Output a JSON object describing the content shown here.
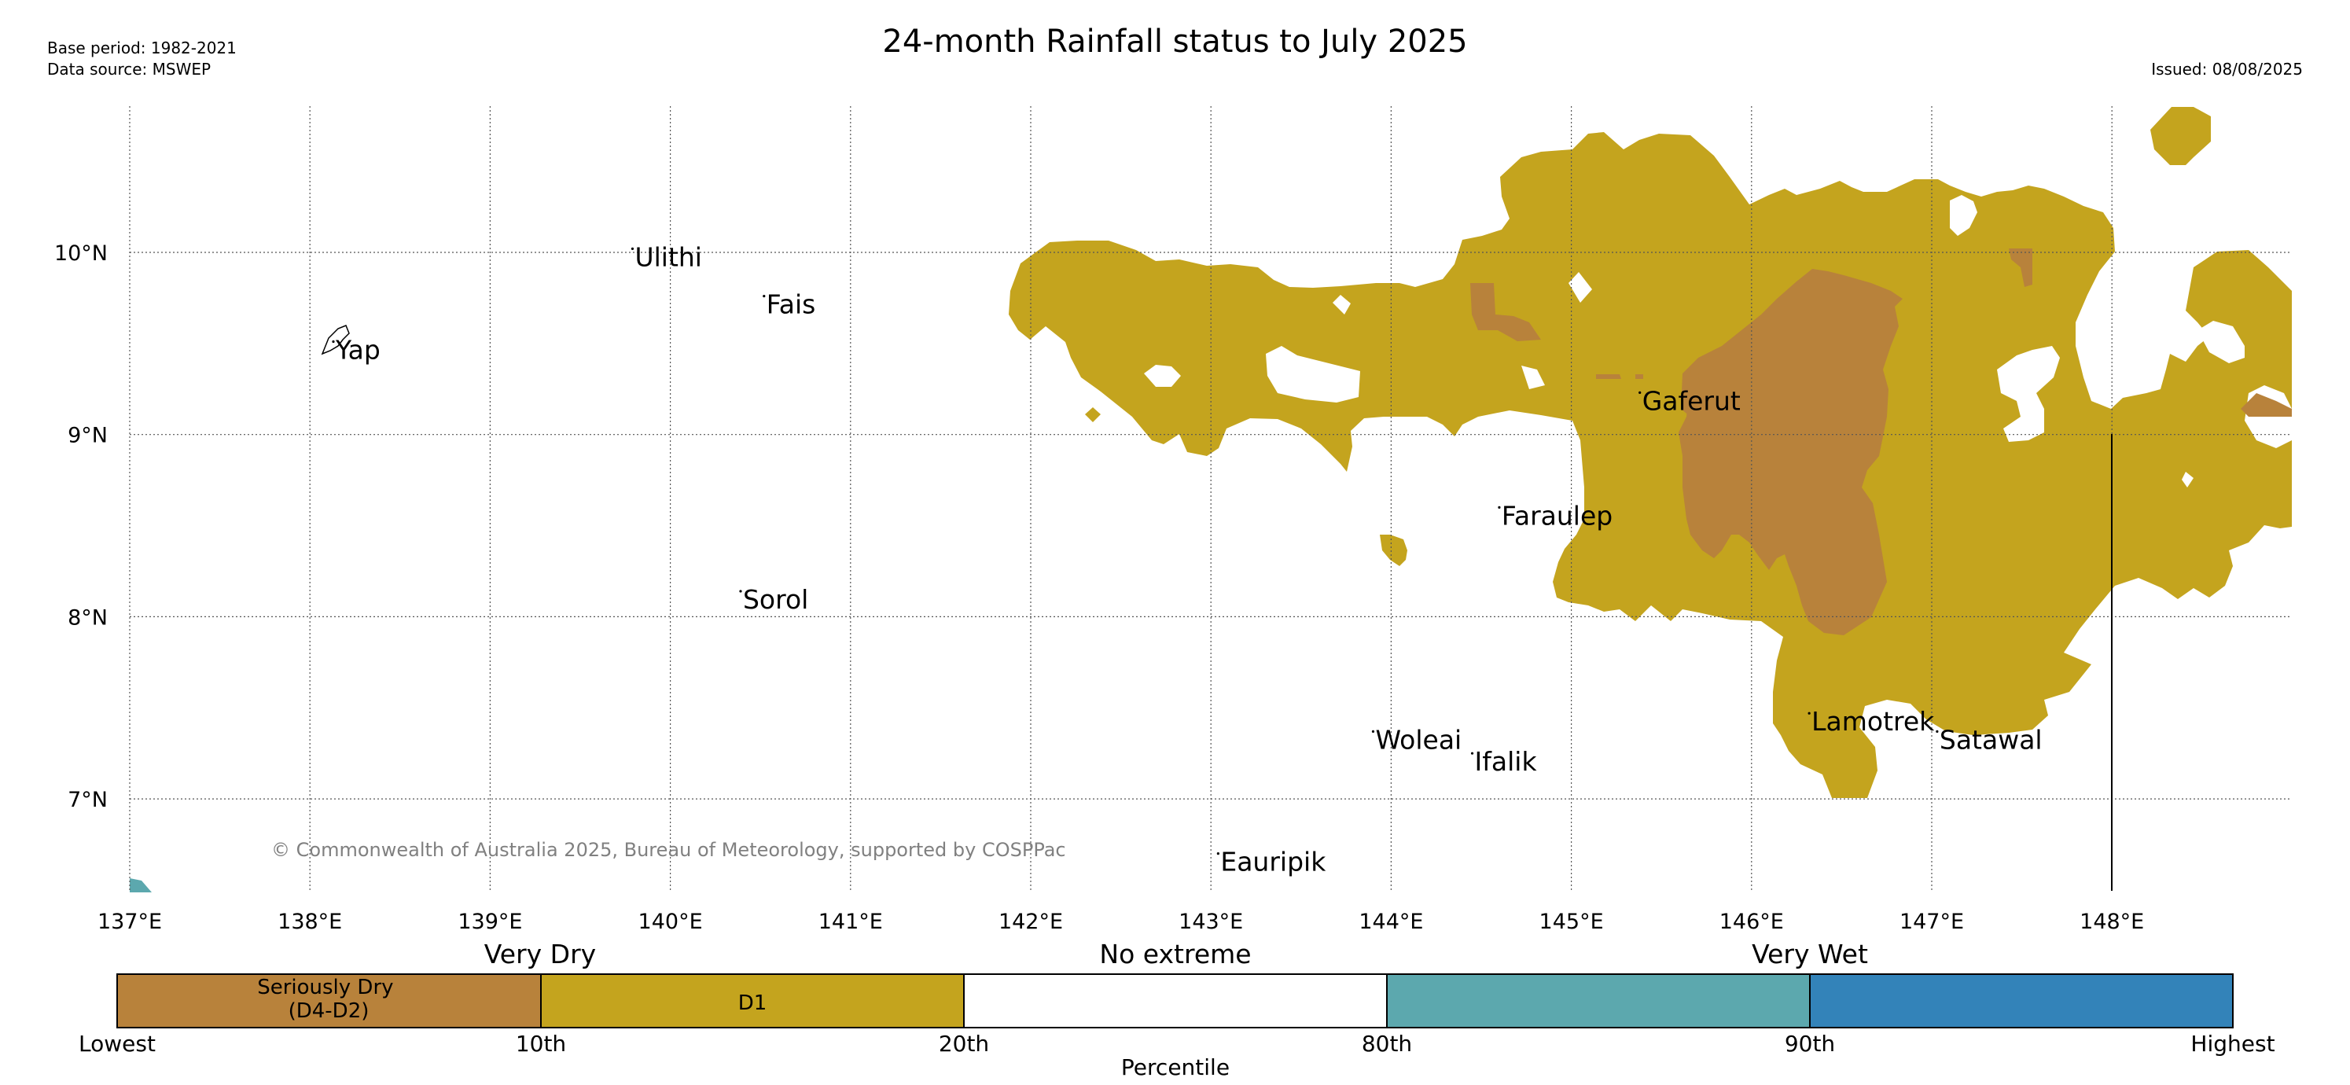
{
  "header": {
    "title": "24-month Rainfall status to July 2025",
    "base_period": "Base period: 1982-2021",
    "data_source": "Data source: MSWEP",
    "issued": "Issued: 08/08/2025"
  },
  "map": {
    "lon_labels": [
      "137°E",
      "138°E",
      "139°E",
      "140°E",
      "141°E",
      "142°E",
      "143°E",
      "144°E",
      "145°E",
      "146°E",
      "147°E",
      "148°E"
    ],
    "lat_labels": [
      "10°N",
      "9°N",
      "8°N",
      "7°N"
    ],
    "places": [
      {
        "name": "Ulithi",
        "lon": 139.79,
        "lat": 10.02
      },
      {
        "name": "Fais",
        "lon": 140.52,
        "lat": 9.76
      },
      {
        "name": "Yap",
        "lon": 138.13,
        "lat": 9.51
      },
      {
        "name": "Gaferut",
        "lon": 145.38,
        "lat": 9.23
      },
      {
        "name": "Faraulep",
        "lon": 144.6,
        "lat": 8.6
      },
      {
        "name": "Sorol",
        "lon": 140.39,
        "lat": 8.14
      },
      {
        "name": "Woleai",
        "lon": 143.9,
        "lat": 7.37
      },
      {
        "name": "Ifalik",
        "lon": 144.45,
        "lat": 7.25
      },
      {
        "name": "Lamotrek",
        "lon": 146.32,
        "lat": 7.47
      },
      {
        "name": "Satawal",
        "lon": 147.03,
        "lat": 7.37
      },
      {
        "name": "Eauripik",
        "lon": 143.04,
        "lat": 6.7
      }
    ],
    "copyright": "© Commonwealth of Australia 2025, Bureau of Meteorology, supported by COSPPac"
  },
  "legend": {
    "category_labels": [
      "Very Dry",
      "No extreme",
      "Very Wet"
    ],
    "boxes": [
      {
        "label": "Seriously Dry\n(D4-D2)",
        "color": "#b8823b"
      },
      {
        "label": "D1",
        "color": "#c4a41e"
      },
      {
        "label": "",
        "color": "#ffffff"
      },
      {
        "label": "",
        "color": "#5ca8ae"
      },
      {
        "label": "",
        "color": "#3383b9"
      }
    ],
    "percentile_labels": [
      "Lowest",
      "10th",
      "20th",
      "80th",
      "90th",
      "Highest"
    ],
    "axis_title": "Percentile"
  },
  "colors": {
    "d1": "#c4a41e",
    "seriously_dry": "#b8823b",
    "very_wet": "#5ca8ae",
    "highest": "#3383b9"
  }
}
